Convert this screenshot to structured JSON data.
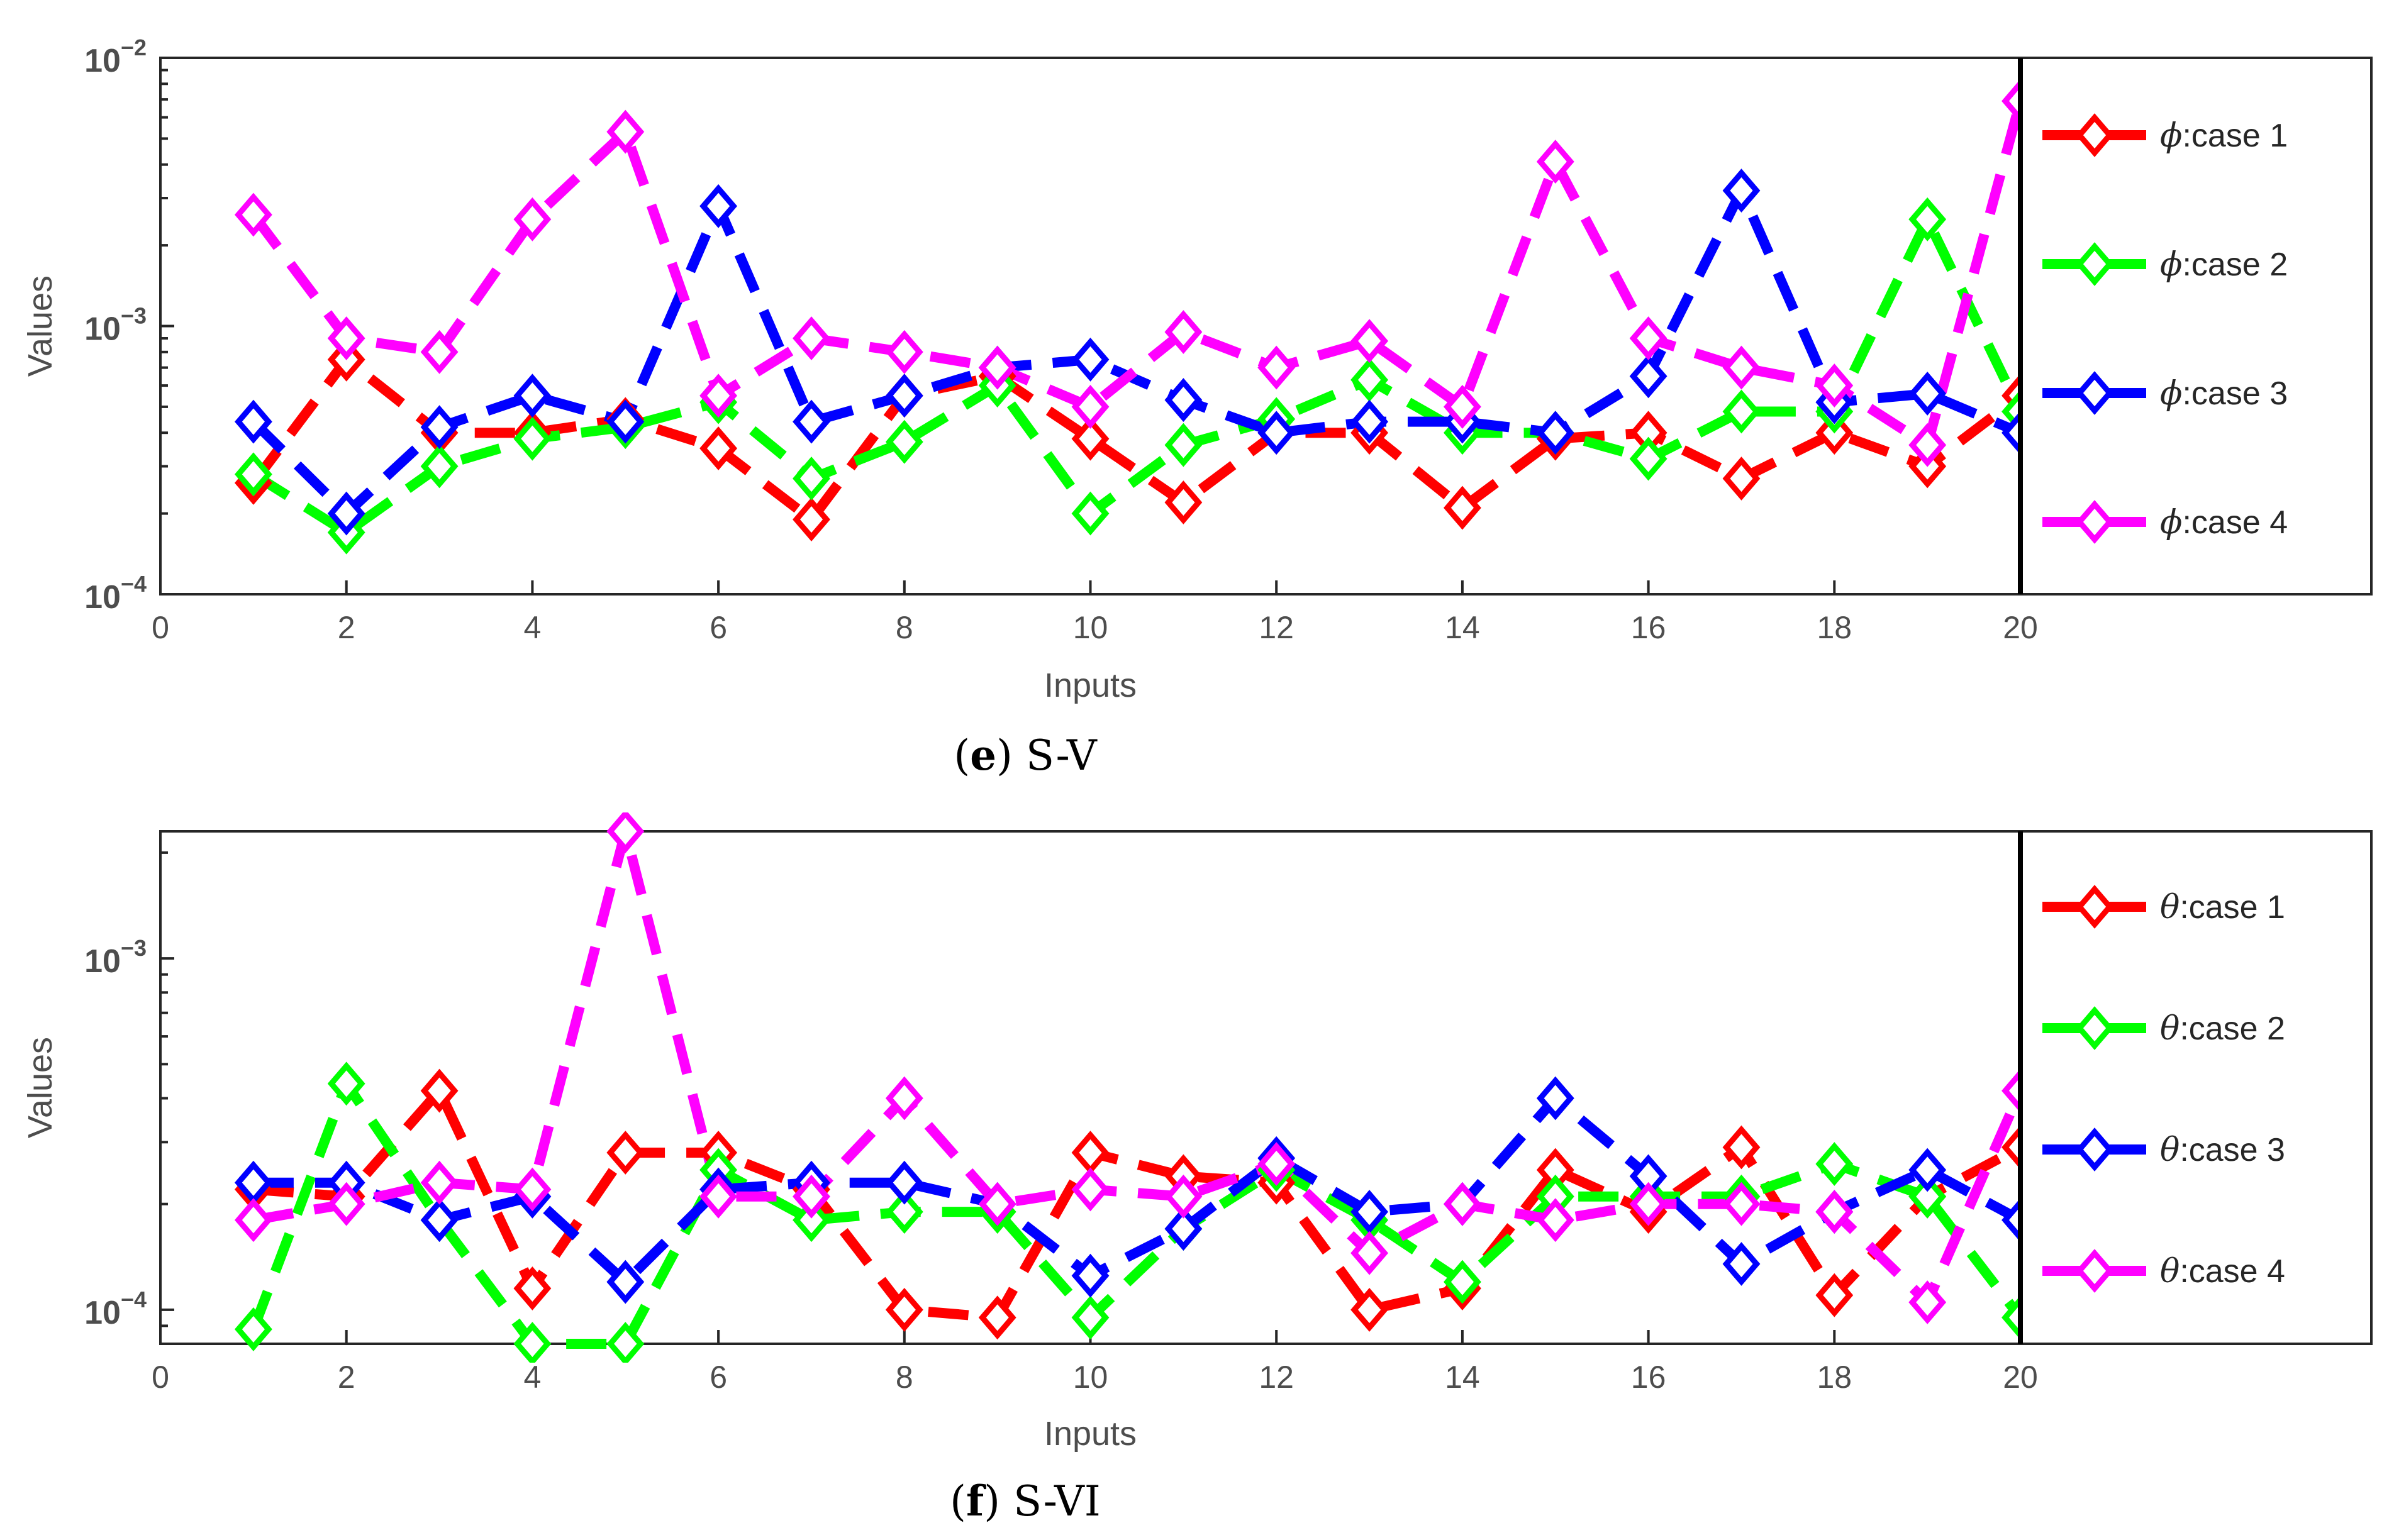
{
  "chart_data": [
    {
      "id": "e",
      "type": "line",
      "caption_letter": "e",
      "caption_text": " S-V",
      "xlabel": "Inputs",
      "ylabel": "Values",
      "yscale": "log",
      "xlim": [
        0,
        20
      ],
      "ylim": [
        0.0001,
        0.01
      ],
      "xticks": [
        "0",
        "2",
        "4",
        "6",
        "8",
        "10",
        "12",
        "14",
        "16",
        "18",
        "20"
      ],
      "yticks": [
        {
          "value": 0.0001,
          "base": "10",
          "exp": "−4"
        },
        {
          "value": 0.001,
          "base": "10",
          "exp": "−3"
        },
        {
          "value": 0.01,
          "base": "10",
          "exp": "−2"
        }
      ],
      "legend_symbol": "ϕ",
      "legend_location": "right",
      "x": [
        1,
        2,
        3,
        4,
        5,
        6,
        7,
        8,
        9,
        10,
        11,
        12,
        13,
        14,
        15,
        16,
        17,
        18,
        19,
        20
      ],
      "series": [
        {
          "name": "case 1",
          "label": ":case 1",
          "color": "#ff0000",
          "values": [
            0.00026,
            0.00075,
            0.0004,
            0.0004,
            0.00045,
            0.00035,
            0.00019,
            0.00055,
            0.00065,
            0.00038,
            0.00022,
            0.0004,
            0.0004,
            0.00021,
            0.00038,
            0.0004,
            0.00027,
            0.0004,
            0.0003,
            0.00055
          ]
        },
        {
          "name": "case 2",
          "label": ":case 2",
          "color": "#00ff00",
          "values": [
            0.00028,
            0.00017,
            0.0003,
            0.00038,
            0.00042,
            0.00052,
            0.00027,
            0.00037,
            0.0006,
            0.0002,
            0.00036,
            0.00045,
            0.00063,
            0.0004,
            0.0004,
            0.00032,
            0.00048,
            0.00048,
            0.0025,
            0.00048
          ]
        },
        {
          "name": "case 3",
          "label": ":case 3",
          "color": "#0000ff",
          "values": [
            0.00044,
            0.0002,
            0.00042,
            0.00055,
            0.00044,
            0.0028,
            0.00044,
            0.00055,
            0.0007,
            0.00075,
            0.00053,
            0.0004,
            0.00044,
            0.00044,
            0.0004,
            0.00065,
            0.0032,
            0.00052,
            0.00056,
            0.0004
          ]
        },
        {
          "name": "case 4",
          "label": ":case 4",
          "color": "#ff00ff",
          "values": [
            0.0026,
            0.0009,
            0.0008,
            0.0025,
            0.0053,
            0.00055,
            0.0009,
            0.0008,
            0.0007,
            0.0005,
            0.00095,
            0.0007,
            0.00088,
            0.0005,
            0.0041,
            0.0009,
            0.0007,
            0.0006,
            0.00036,
            0.0069
          ]
        }
      ]
    },
    {
      "id": "f",
      "type": "line",
      "caption_letter": "f",
      "caption_text": " S-VI",
      "xlabel": "Inputs",
      "ylabel": "Values",
      "yscale": "log",
      "xlim": [
        0,
        20
      ],
      "ylim": [
        8e-05,
        0.0023
      ],
      "xticks": [
        "0",
        "2",
        "4",
        "6",
        "8",
        "10",
        "12",
        "14",
        "16",
        "18",
        "20"
      ],
      "yticks": [
        {
          "value": 0.0001,
          "base": "10",
          "exp": "−4"
        },
        {
          "value": 0.001,
          "base": "10",
          "exp": "−3"
        }
      ],
      "legend_symbol": "θ",
      "legend_location": "right",
      "x": [
        1,
        2,
        3,
        4,
        5,
        6,
        7,
        8,
        9,
        10,
        11,
        12,
        13,
        14,
        15,
        16,
        17,
        18,
        19,
        20
      ],
      "series": [
        {
          "name": "case 1",
          "label": ":case 1",
          "color": "#ff0000",
          "values": [
            0.00022,
            0.00021,
            0.00042,
            0.000115,
            0.00028,
            0.00028,
            0.00022,
            0.0001,
            9.5e-05,
            0.00028,
            0.00024,
            0.00023,
            0.0001,
            0.000115,
            0.00025,
            0.00019,
            0.00029,
            0.00011,
            0.00021,
            0.00029
          ]
        },
        {
          "name": "case 2",
          "label": ":case 2",
          "color": "#00ff00",
          "values": [
            8.8e-05,
            0.00044,
            0.00018,
            8e-05,
            8e-05,
            0.00025,
            0.00018,
            0.00019,
            0.00019,
            9.5e-05,
            0.00017,
            0.00025,
            0.00018,
            0.00012,
            0.00021,
            0.00021,
            0.00021,
            0.00026,
            0.00021,
            9.5e-05
          ]
        },
        {
          "name": "case 3",
          "label": ":case 3",
          "color": "#0000ff",
          "values": [
            0.00023,
            0.00023,
            0.00018,
            0.00021,
            0.00012,
            0.00022,
            0.00023,
            0.00023,
            0.0002,
            0.000125,
            0.00017,
            0.00027,
            0.00019,
            0.0002,
            0.0004,
            0.00024,
            0.000135,
            0.00019,
            0.00025,
            0.00018
          ]
        },
        {
          "name": "case 4",
          "label": ":case 4",
          "color": "#ff00ff",
          "values": [
            0.00018,
            0.0002,
            0.00023,
            0.00022,
            0.0023,
            0.00021,
            0.00021,
            0.0004,
            0.0002,
            0.00022,
            0.00021,
            0.00026,
            0.000145,
            0.0002,
            0.00018,
            0.0002,
            0.0002,
            0.00019,
            0.000105,
            0.00042
          ]
        }
      ]
    }
  ]
}
